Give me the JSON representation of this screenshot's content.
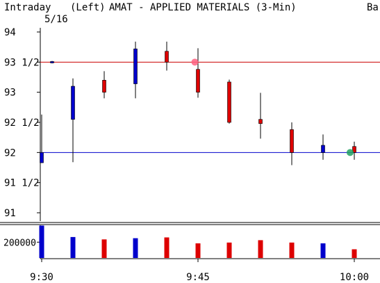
{
  "header": {
    "mode": "Intraday",
    "date": "5/16",
    "axis_side": "(Left)",
    "title": "AMAT - APPLIED MATERIALS (3-Min)",
    "right_cut": "Ba"
  },
  "colors": {
    "up": "#0000cc",
    "down": "#dd0000",
    "upper_line": "#cc0000",
    "lower_line": "#0000cc",
    "marker_red": "#ff6080",
    "marker_green": "#20a060"
  },
  "chart_data": [
    {
      "type": "candlestick",
      "title": "AMAT - APPLIED MATERIALS (3-Min)",
      "ylim": [
        90.85,
        94.0
      ],
      "yticks": [
        {
          "value": 94,
          "label": "94"
        },
        {
          "value": 93.5,
          "label": "93 1/2"
        },
        {
          "value": 93,
          "label": "93"
        },
        {
          "value": 92.5,
          "label": "92 1/2"
        },
        {
          "value": 92,
          "label": "92"
        },
        {
          "value": 91.5,
          "label": "91 1/2"
        },
        {
          "value": 91,
          "label": "91"
        }
      ],
      "xticks": [
        {
          "minute": 0,
          "label": "9:30"
        },
        {
          "minute": 15,
          "label": "9:45"
        },
        {
          "minute": 30,
          "label": "10:00"
        }
      ],
      "candles": [
        {
          "minute": 0,
          "open": 91.83,
          "high": 92.63,
          "low": 91.83,
          "close": 92.0
        },
        {
          "minute": 1,
          "open": 93.5,
          "high": 93.52,
          "low": 93.48,
          "close": 93.51
        },
        {
          "minute": 3,
          "open": 92.55,
          "high": 93.23,
          "low": 91.84,
          "close": 93.1
        },
        {
          "minute": 6,
          "open": 93.2,
          "high": 93.35,
          "low": 92.9,
          "close": 93.0
        },
        {
          "minute": 9,
          "open": 93.14,
          "high": 93.84,
          "low": 92.9,
          "close": 93.72
        },
        {
          "minute": 12,
          "open": 93.68,
          "high": 93.84,
          "low": 93.36,
          "close": 93.5
        },
        {
          "minute": 15,
          "open": 93.38,
          "high": 93.73,
          "low": 92.91,
          "close": 93.0
        },
        {
          "minute": 18,
          "open": 93.17,
          "high": 93.21,
          "low": 92.48,
          "close": 92.5
        },
        {
          "minute": 21,
          "open": 92.55,
          "high": 92.99,
          "low": 92.23,
          "close": 92.48
        },
        {
          "minute": 24,
          "open": 92.38,
          "high": 92.5,
          "low": 91.79,
          "close": 92.0
        },
        {
          "minute": 27,
          "open": 92.0,
          "high": 92.3,
          "low": 91.88,
          "close": 92.12
        },
        {
          "minute": 30,
          "open": 92.1,
          "high": 92.18,
          "low": 91.88,
          "close": 92.0
        }
      ],
      "reference_lines": [
        {
          "value": 93.5,
          "color": "#cc0000"
        },
        {
          "value": 92.0,
          "color": "#0000cc"
        }
      ],
      "markers": [
        {
          "minute": 14.7,
          "value": 93.5,
          "color": "#ff6080"
        },
        {
          "minute": 29.6,
          "value": 92.0,
          "color": "#20a060"
        }
      ]
    },
    {
      "type": "bar",
      "ylabel_tick": {
        "value": 200000,
        "label": "200000"
      },
      "ylim": [
        0,
        440000
      ],
      "bars": [
        {
          "minute": 0,
          "value": 410000,
          "dir": "up"
        },
        {
          "minute": 3,
          "value": 265000,
          "dir": "up"
        },
        {
          "minute": 6,
          "value": 235000,
          "dir": "down"
        },
        {
          "minute": 9,
          "value": 250000,
          "dir": "up"
        },
        {
          "minute": 12,
          "value": 260000,
          "dir": "down"
        },
        {
          "minute": 15,
          "value": 185000,
          "dir": "down"
        },
        {
          "minute": 18,
          "value": 195000,
          "dir": "down"
        },
        {
          "minute": 21,
          "value": 225000,
          "dir": "down"
        },
        {
          "minute": 24,
          "value": 195000,
          "dir": "down"
        },
        {
          "minute": 27,
          "value": 185000,
          "dir": "up"
        },
        {
          "minute": 30,
          "value": 110000,
          "dir": "down"
        }
      ]
    }
  ]
}
